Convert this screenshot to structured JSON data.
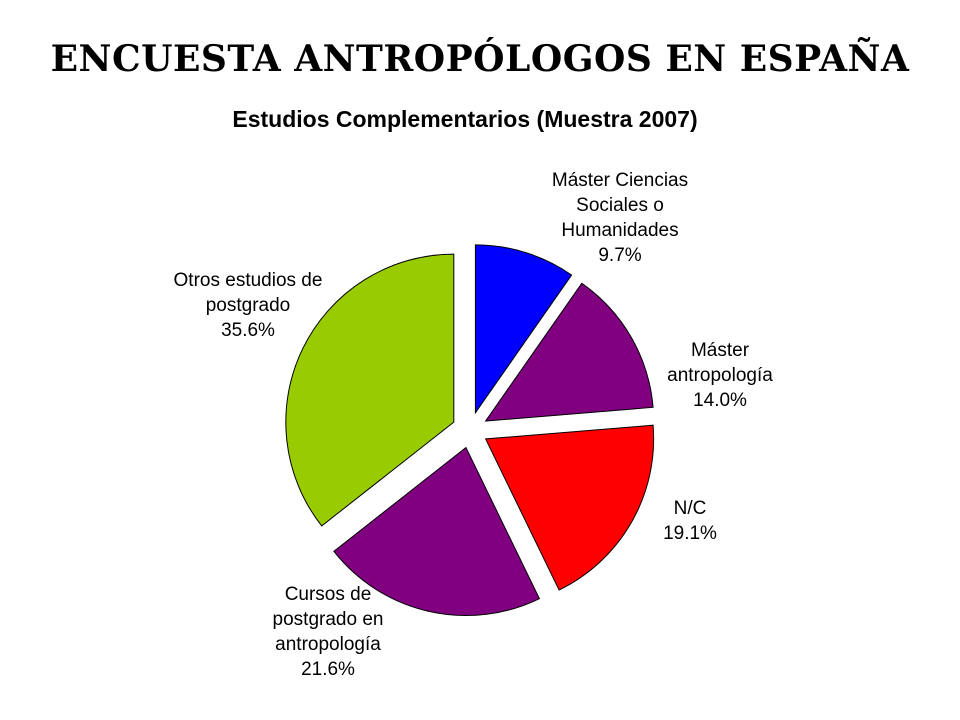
{
  "header": {
    "title": "ENCUESTA ANTROPÓLOGOS EN ESPAÑA"
  },
  "chart_data": {
    "type": "pie",
    "title": "Estudios Complementarios (Muestra 2007)",
    "start_angle_deg": 0,
    "direction": "clockwise",
    "exploded": true,
    "slices": [
      {
        "label_lines": [
          "Máster Ciencias",
          "Sociales o",
          "Humanidades"
        ],
        "value": 9.7,
        "value_label": "9.7%",
        "color": "#0000ff"
      },
      {
        "label_lines": [
          "Máster",
          "antropología"
        ],
        "value": 14.0,
        "value_label": "14.0%",
        "color": "#800080"
      },
      {
        "label_lines": [
          "N/C"
        ],
        "value": 19.1,
        "value_label": "19.1%",
        "color": "#ff0000"
      },
      {
        "label_lines": [
          "Cursos de",
          "postgrado en",
          "antropología"
        ],
        "value": 21.6,
        "value_label": "21.6%",
        "color": "#800080"
      },
      {
        "label_lines": [
          "Otros estudios de",
          "postgrado"
        ],
        "value": 35.6,
        "value_label": "35.6%",
        "color": "#99cc00"
      }
    ]
  }
}
